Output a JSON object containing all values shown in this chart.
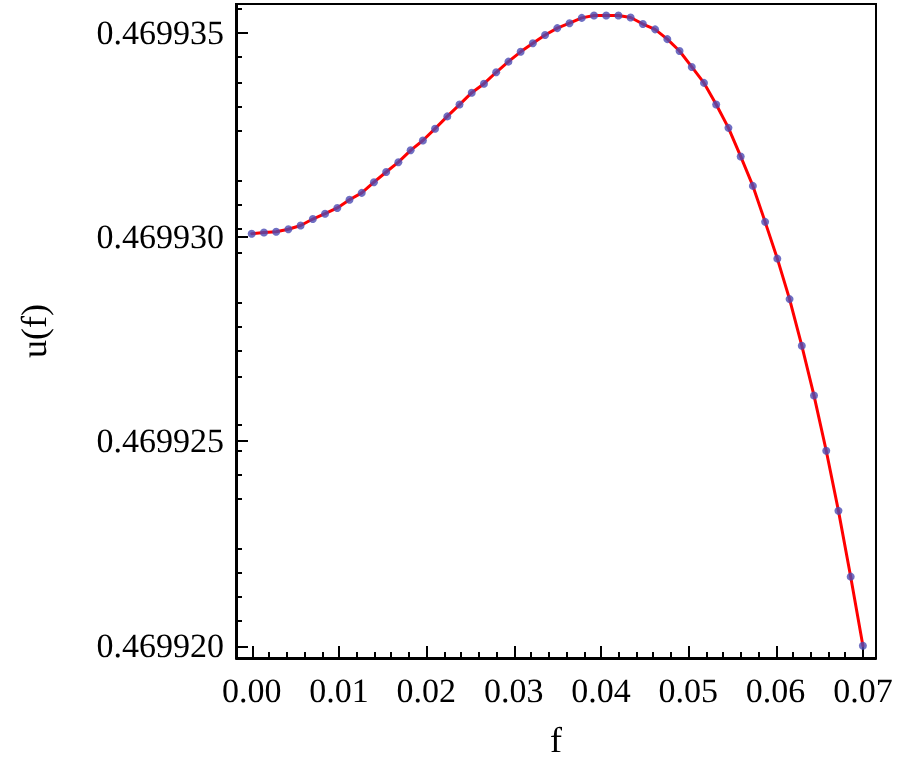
{
  "chart_data": {
    "type": "line",
    "xlabel": "f",
    "ylabel": "u(f)",
    "x": [
      0,
      0.0014,
      0.0028,
      0.0042,
      0.0056,
      0.007,
      0.0084,
      0.0098,
      0.0112,
      0.0126,
      0.014,
      0.0154,
      0.0168,
      0.0182,
      0.0196,
      0.021,
      0.0224,
      0.0238,
      0.0252,
      0.0266,
      0.028,
      0.0294,
      0.0308,
      0.0322,
      0.0336,
      0.035,
      0.0364,
      0.0378,
      0.0392,
      0.0406,
      0.042,
      0.0434,
      0.0448,
      0.0462,
      0.0476,
      0.049,
      0.0504,
      0.0518,
      0.0532,
      0.0546,
      0.056,
      0.0574,
      0.0588,
      0.0602,
      0.0616,
      0.063,
      0.0644,
      0.0658,
      0.0672,
      0.0686,
      0.07
    ],
    "series": [
      {
        "type": "line",
        "color": "#ff0000",
        "marker": "none",
        "values": [
          0.46993008,
          0.46993011,
          0.46993013,
          0.46993019,
          0.46993028,
          0.46993044,
          0.46993057,
          0.46993071,
          0.46993091,
          0.46993108,
          0.46993134,
          0.46993159,
          0.46993183,
          0.46993212,
          0.46993236,
          0.46993265,
          0.46993295,
          0.46993324,
          0.46993353,
          0.46993375,
          0.46993403,
          0.46993429,
          0.46993453,
          0.46993474,
          0.46993494,
          0.46993511,
          0.46993523,
          0.46993536,
          0.46993542,
          0.46993542,
          0.46993542,
          0.46993537,
          0.46993521,
          0.46993508,
          0.46993484,
          0.46993455,
          0.46993416,
          0.46993377,
          0.46993324,
          0.46993267,
          0.46993197,
          0.46993125,
          0.46993037,
          0.46992947,
          0.46992848,
          0.46992734,
          0.46992612,
          0.46992477,
          0.4699233,
          0.46992169,
          0.46992
        ]
      },
      {
        "type": "scatter",
        "color": "#4b4bb4",
        "marker": "circle",
        "values": [
          0.46993008,
          0.46993011,
          0.46993013,
          0.46993019,
          0.46993028,
          0.46993044,
          0.46993057,
          0.46993071,
          0.46993091,
          0.46993108,
          0.46993134,
          0.46993159,
          0.46993183,
          0.46993212,
          0.46993236,
          0.46993265,
          0.46993295,
          0.46993324,
          0.46993353,
          0.46993375,
          0.46993403,
          0.46993429,
          0.46993453,
          0.46993474,
          0.46993494,
          0.46993511,
          0.46993523,
          0.46993536,
          0.46993542,
          0.46993542,
          0.46993542,
          0.46993537,
          0.46993521,
          0.46993508,
          0.46993484,
          0.46993455,
          0.46993416,
          0.46993377,
          0.46993324,
          0.46993267,
          0.46993197,
          0.46993125,
          0.46993037,
          0.46992947,
          0.46992848,
          0.46992734,
          0.46992612,
          0.46992477,
          0.4699233,
          0.46992169,
          0.46992
        ]
      }
    ],
    "xlim": [
      -0.0018,
      0.0715
    ],
    "xticks": [
      {
        "value": 0,
        "label": "0.00"
      },
      {
        "value": 0.01,
        "label": "0.01"
      },
      {
        "value": 0.02,
        "label": "0.02"
      },
      {
        "value": 0.03,
        "label": "0.03"
      },
      {
        "value": 0.04,
        "label": "0.04"
      },
      {
        "value": 0.05,
        "label": "0.05"
      },
      {
        "value": 0.06,
        "label": "0.06"
      },
      {
        "value": 0.07,
        "label": "0.07"
      }
    ],
    "ylim": [
      0.4699197,
      0.4699357
    ],
    "yticks": [
      {
        "value": 0.46992,
        "label": "0.469920"
      },
      {
        "value": 0.469925,
        "label": "0.469925"
      },
      {
        "value": 0.46993,
        "label": "0.469930"
      },
      {
        "value": 0.469935,
        "label": "0.469935"
      }
    ],
    "grid": false
  }
}
